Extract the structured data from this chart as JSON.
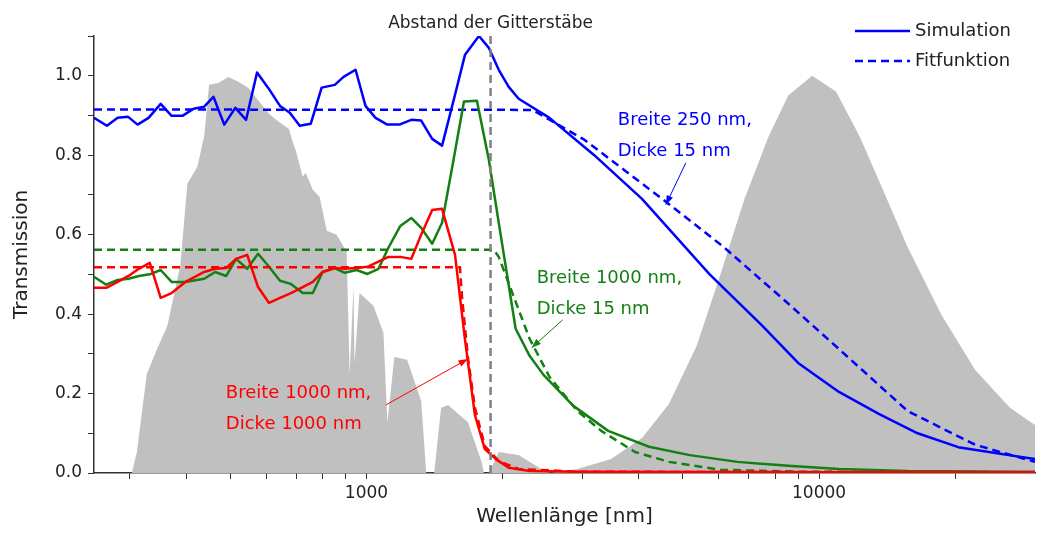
{
  "chart_data": {
    "type": "line",
    "xlabel": "Wellenlänge [nm]",
    "ylabel": "Transmission",
    "log": "x",
    "grid": false,
    "legend": "top right",
    "marker": "none",
    "xlim": [
      250,
      30000
    ],
    "ylim": [
      0,
      1.1
    ],
    "xticks": [
      {
        "value": 300,
        "label": null
      },
      {
        "value": 400,
        "label": null
      },
      {
        "value": 500,
        "label": null
      },
      {
        "value": 600,
        "label": null
      },
      {
        "value": 700,
        "label": null
      },
      {
        "value": 800,
        "label": null
      },
      {
        "value": 900,
        "label": null
      },
      1000,
      {
        "value": 2000,
        "label": null
      },
      {
        "value": 3000,
        "label": null
      },
      {
        "value": 4000,
        "label": null
      },
      {
        "value": 5000,
        "label": null
      },
      {
        "value": 6000,
        "label": null
      },
      {
        "value": 7000,
        "label": null
      },
      {
        "value": 8000,
        "label": null
      },
      {
        "value": 9000,
        "label": null
      },
      10000,
      {
        "value": 20000,
        "label": null
      }
    ],
    "yticks": [
      {
        "value": 0,
        "label": "0.0"
      },
      {
        "value": 0.1,
        "label": null
      },
      0.2,
      {
        "value": 0.3,
        "label": null
      },
      0.4,
      {
        "value": 0.5,
        "label": null
      },
      0.6,
      {
        "value": 0.7,
        "label": null
      },
      0.8,
      {
        "value": 0.9,
        "label": null
      },
      {
        "value": 1,
        "label": "1.0"
      },
      {
        "value": 1.1,
        "label": null
      }
    ],
    "ref_lines": [
      {
        "axis": "x",
        "value": 1880,
        "label": "Abstand der Gitterstäbe",
        "color": "#808080",
        "line_style": "dashed"
      }
    ],
    "annotations": [
      {
        "text": "Breite 250 nm,\nDicke 15 nm",
        "x": 4586,
        "y": 0.675
      },
      {
        "text": "Breite 1000 nm,\nDicke 15 nm",
        "x": 2317,
        "y": 0.315
      },
      {
        "text": "Breite 1000 nm,\nDicke 1000 nm",
        "x": 1675,
        "y": 0.287
      }
    ],
    "series": [
      {
        "type": "area",
        "color": "#c0c0c0",
        "x": [
          303,
          311,
          327,
          344,
          363,
          388,
          402,
          423,
          438,
          449,
          470,
          495,
          521,
          548,
          579,
          609,
          640,
          674,
          688,
          698,
          723,
          734,
          761,
          788,
          817,
          859,
          904,
          918,
          936,
          941,
          965,
          1036,
          1090,
          1112,
          1129,
          1152,
          1230,
          1321,
          1355,
          1411,
          1462,
          1514,
          1676,
          1799,
          1817,
          1864,
          1960,
          2169,
          2474,
          2550,
          2924,
          3472,
          4062,
          4658,
          5365,
          6059,
          6841,
          7726,
          8549,
          9652,
          10900,
          12310,
          13900,
          15690,
          18640,
          22130,
          26420,
          30000
        ],
        "values": [
          0,
          0.053,
          0.249,
          0.31,
          0.37,
          0.524,
          0.728,
          0.771,
          0.849,
          0.977,
          0.982,
          0.997,
          0.985,
          0.97,
          0.935,
          0.904,
          0.884,
          0.866,
          0.831,
          0.811,
          0.746,
          0.756,
          0.713,
          0.695,
          0.61,
          0.6,
          0.557,
          0.249,
          0.471,
          0.275,
          0.453,
          0.421,
          0.353,
          0.128,
          0.196,
          0.292,
          0.285,
          0.181,
          0,
          0,
          0.164,
          0.171,
          0.128,
          0.025,
          0,
          0,
          0.053,
          0.045,
          0.005,
          0,
          0.01,
          0.035,
          0.088,
          0.174,
          0.32,
          0.501,
          0.69,
          0.846,
          0.95,
          1.0,
          0.96,
          0.846,
          0.708,
          0.569,
          0.398,
          0.259,
          0.164,
          0.121
        ]
      },
      {
        "name": "Simulation",
        "color": "#0000ff",
        "x": [
          250,
          267,
          282,
          297,
          312,
          330,
          351,
          371,
          392,
          415,
          438,
          459,
          485,
          513,
          542,
          573,
          606,
          644,
          677,
          712,
          753,
          796,
          851,
          890,
          946,
          995,
          1047,
          1112,
          1182,
          1256,
          1321,
          1397,
          1469,
          1569,
          1651,
          1772,
          1864,
          1960,
          2062,
          2169,
          2537,
          3186,
          4062,
          5731,
          7458,
          8990,
          11066,
          13550,
          16510,
          20310,
          30000
        ],
        "values": [
          0.894,
          0.874,
          0.894,
          0.897,
          0.877,
          0.894,
          0.929,
          0.899,
          0.899,
          0.917,
          0.922,
          0.947,
          0.877,
          0.919,
          0.889,
          1.008,
          0.97,
          0.924,
          0.907,
          0.874,
          0.879,
          0.97,
          0.977,
          0.997,
          1.015,
          0.924,
          0.894,
          0.877,
          0.877,
          0.889,
          0.887,
          0.841,
          0.824,
          0.952,
          1.053,
          1.1,
          1.07,
          1.015,
          0.972,
          0.942,
          0.894,
          0.8,
          0.69,
          0.5,
          0.373,
          0.277,
          0.204,
          0.149,
          0.1,
          0.065,
          0.035
        ]
      },
      {
        "name": "Fitfunktion",
        "color": "#0000ff",
        "line_style": "dashed",
        "x": [
          250,
          2329,
          3029,
          4586,
          6151,
          8421,
          11066,
          15690,
          22130,
          30000
        ],
        "values": [
          0.915,
          0.914,
          0.839,
          0.683,
          0.569,
          0.433,
          0.312,
          0.156,
          0.071,
          0.028
        ]
      },
      {
        "color": "#138013",
        "x": [
          250,
          266,
          282,
          298,
          314,
          334,
          351,
          371,
          398,
          438,
          463,
          490,
          515,
          545,
          576,
          609,
          644,
          681,
          723,
          761,
          800,
          851,
          895,
          951,
          1005,
          1063,
          1118,
          1188,
          1256,
          1321,
          1397,
          1469,
          1553,
          1642,
          1754,
          1864,
          1960,
          2136,
          2293,
          2461,
          2865,
          3420,
          4210,
          5179,
          6603,
          8549,
          11066,
          15690,
          30000
        ],
        "values": [
          0.494,
          0.474,
          0.486,
          0.489,
          0.496,
          0.501,
          0.511,
          0.481,
          0.481,
          0.489,
          0.506,
          0.496,
          0.539,
          0.514,
          0.552,
          0.519,
          0.484,
          0.476,
          0.453,
          0.453,
          0.506,
          0.516,
          0.504,
          0.511,
          0.501,
          0.514,
          0.567,
          0.622,
          0.642,
          0.617,
          0.577,
          0.63,
          0.781,
          0.935,
          0.937,
          0.788,
          0.63,
          0.363,
          0.295,
          0.247,
          0.169,
          0.106,
          0.066,
          0.045,
          0.028,
          0.018,
          0.01,
          0.005,
          0.003
        ]
      },
      {
        "color": "#138013",
        "line_style": "dashed",
        "x": [
          250,
          1911,
          1960,
          2104,
          2293,
          2537,
          2924,
          3302,
          3921,
          4658,
          6059,
          9316,
          30000
        ],
        "values": [
          0.562,
          0.562,
          0.544,
          0.451,
          0.338,
          0.242,
          0.156,
          0.106,
          0.053,
          0.028,
          0.008,
          0.003,
          0.002
        ]
      },
      {
        "color": "#ff0000",
        "x": [
          250,
          266,
          282,
          298,
          314,
          332,
          351,
          371,
          398,
          438,
          463,
          490,
          515,
          545,
          576,
          609,
          644,
          681,
          723,
          761,
          800,
          851,
          895,
          951,
          1005,
          1063,
          1118,
          1188,
          1256,
          1321,
          1397,
          1469,
          1569,
          1651,
          1736,
          1826,
          1931,
          2062,
          2293,
          3000,
          10000,
          30000
        ],
        "values": [
          0.466,
          0.466,
          0.481,
          0.496,
          0.514,
          0.529,
          0.441,
          0.453,
          0.481,
          0.506,
          0.514,
          0.516,
          0.539,
          0.549,
          0.468,
          0.428,
          0.441,
          0.453,
          0.468,
          0.481,
          0.506,
          0.516,
          0.514,
          0.516,
          0.519,
          0.532,
          0.544,
          0.544,
          0.539,
          0.6,
          0.662,
          0.665,
          0.549,
          0.335,
          0.146,
          0.06,
          0.035,
          0.013,
          0.005,
          0.003,
          0.002,
          0.002
        ]
      },
      {
        "color": "#ff0000",
        "line_style": "dashed",
        "x": [
          250,
          1609,
          1625,
          1675,
          1736,
          1826,
          1960,
          2169,
          3000,
          30000
        ],
        "values": [
          0.518,
          0.518,
          0.446,
          0.292,
          0.164,
          0.068,
          0.03,
          0.01,
          0.003,
          0.002
        ]
      }
    ]
  }
}
